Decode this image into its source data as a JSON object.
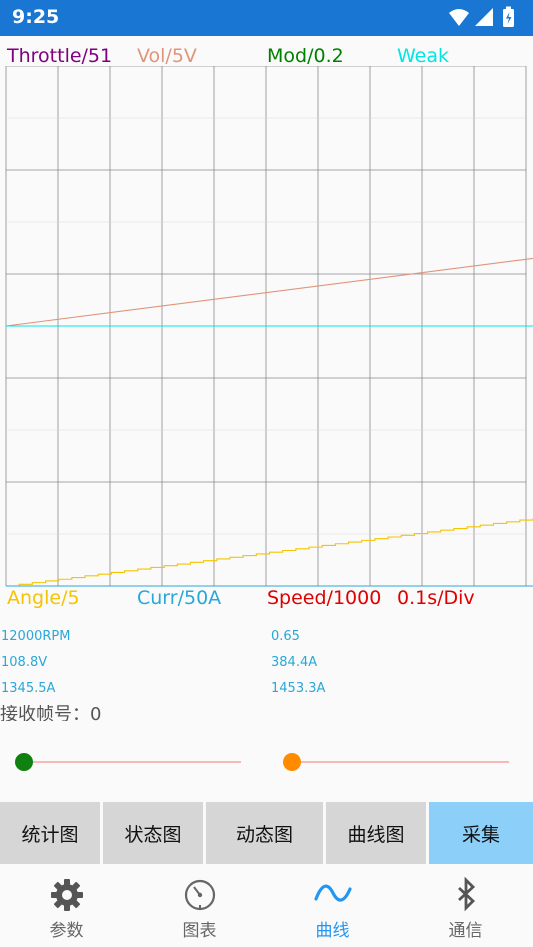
{
  "status_bar": {
    "time": "9:25"
  },
  "legend_top": [
    {
      "text": "Throttle/51",
      "color": "#800080"
    },
    {
      "text": "Vol/5V",
      "color": "#e0957a"
    },
    {
      "text": "Mod/0.2",
      "color": "#008000"
    },
    {
      "text": "Weak",
      "color": "#00e5e5"
    }
  ],
  "legend_bottom": [
    {
      "text": "Angle/5",
      "color": "#f5c400"
    },
    {
      "text": "Curr/50A",
      "color": "#29a8d8"
    },
    {
      "text": "Speed/1000",
      "color": "#e00000"
    },
    {
      "text": "0.1s/Div",
      "color": "#e00000"
    }
  ],
  "readouts": {
    "left": [
      "12000RPM",
      "108.8V",
      "1345.5A"
    ],
    "right": [
      "0.65",
      "384.4A",
      "1453.3A"
    ]
  },
  "frame_label": "接收帧号：0",
  "sliders": [
    {
      "color": "#108010",
      "value": 0.0
    },
    {
      "color": "#ff8c00",
      "value": 0.0
    }
  ],
  "buttons": [
    "统计图",
    "状态图",
    "动态图",
    "曲线图",
    "采集"
  ],
  "nav": [
    {
      "label": "参数",
      "icon": "gear-icon"
    },
    {
      "label": "图表",
      "icon": "gauge-icon"
    },
    {
      "label": "曲线",
      "icon": "wave-icon"
    },
    {
      "label": "通信",
      "icon": "bluetooth-icon"
    }
  ],
  "chart_data": {
    "type": "line",
    "title": "",
    "xlabel": "",
    "ylabel": "",
    "grid": true,
    "x_divisions": 10,
    "y_divisions": 10,
    "series": [
      {
        "name": "Vol/5V",
        "color": "#e0957a",
        "x": [
          0,
          10
        ],
        "y": [
          5.0,
          6.3
        ]
      },
      {
        "name": "Weak",
        "color": "#00e5e5",
        "x": [
          0,
          10
        ],
        "y": [
          5.0,
          5.0
        ]
      },
      {
        "name": "Angle/5",
        "color": "#f5c400",
        "x": [
          0,
          10
        ],
        "y": [
          0.0,
          1.3
        ],
        "step": true
      },
      {
        "name": "Curr/50A",
        "color": "#29a8d8",
        "x": [
          0,
          10
        ],
        "y": [
          0.0,
          0.0
        ]
      }
    ]
  }
}
